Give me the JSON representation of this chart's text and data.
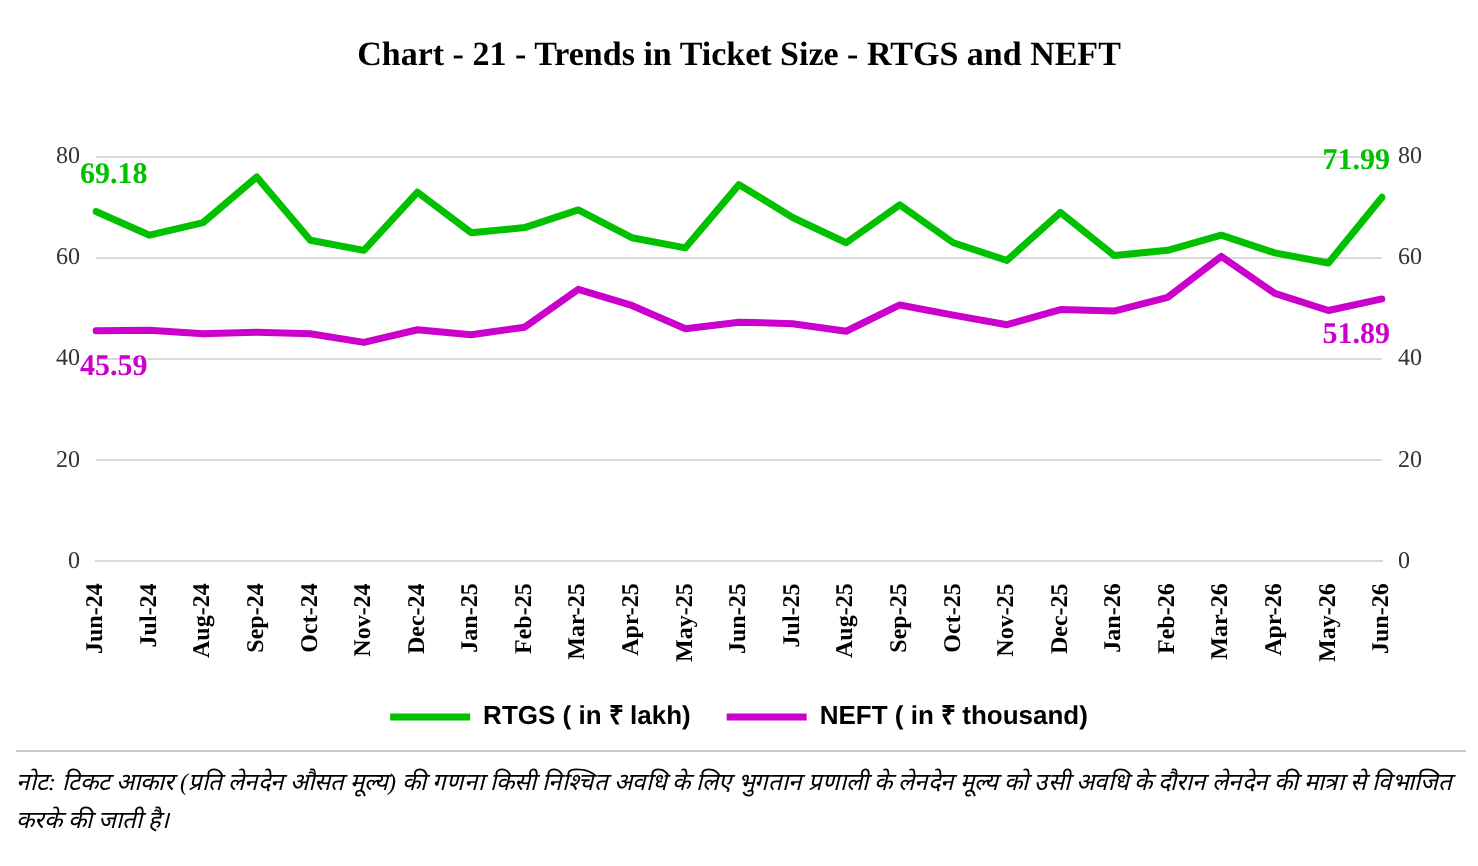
{
  "chart_data": {
    "type": "line",
    "title": "Chart - 21 - Trends in Ticket Size - RTGS and NEFT",
    "categories": [
      "Jun-24",
      "Jul-24",
      "Aug-24",
      "Sep-24",
      "Oct-24",
      "Nov-24",
      "Dec-24",
      "Jan-25",
      "Feb-25",
      "Mar-25",
      "Apr-25",
      "May-25",
      "Jun-25",
      "Jul-25",
      "Aug-25",
      "Sep-25",
      "Oct-25",
      "Nov-25",
      "Dec-25",
      "Jan-26",
      "Feb-26",
      "Mar-26",
      "Apr-26",
      "May-26",
      "Jun-26"
    ],
    "series": [
      {
        "name": "RTGS ( in ₹ lakh)",
        "color": "#00c000",
        "values": [
          69.18,
          64.5,
          67,
          76,
          63.5,
          61.5,
          73,
          65,
          66,
          69.5,
          64,
          62,
          74.5,
          68,
          63,
          70.5,
          63,
          59.5,
          69,
          60.5,
          61.5,
          64.5,
          61,
          59,
          71.99
        ]
      },
      {
        "name": "NEFT ( in ₹ thousand)",
        "color": "#cc00cc",
        "values": [
          45.59,
          45.7,
          45,
          45.3,
          45,
          43.3,
          45.8,
          44.8,
          46.3,
          53.8,
          50.6,
          46,
          47.3,
          47,
          45.5,
          50.7,
          48.7,
          46.8,
          49.8,
          49.5,
          52.2,
          60.3,
          53,
          49.6,
          51.89
        ]
      }
    ],
    "ylim": [
      0,
      80
    ],
    "yticks": [
      0,
      20,
      40,
      60,
      80
    ],
    "y2lim": [
      0,
      80
    ],
    "y2ticks": [
      0,
      20,
      40,
      60,
      80
    ],
    "grid": "y",
    "legend": "bottom",
    "marker": "none",
    "line_style": "solid",
    "annotations": [
      {
        "text": "69.18",
        "x": "Jun-24",
        "y": 69.18
      },
      {
        "text": "45.59",
        "x": "Jun-24",
        "y": 45.59
      },
      {
        "text": "71.99",
        "x": "Jun-26",
        "y": 71.99
      },
      {
        "text": "51.89",
        "x": "Jun-26",
        "y": 51.89
      },
      "नोट: टिकट आकार (प्रति लेनदेन औसत मूल्य) की गणना किसी निश्चित अवधि के लिए भुगतान प्रणाली के लेनदेन मूल्य को उसी अवधि के दौरान लेनदेन की मात्रा से विभाजित करके की जाती है।"
    ]
  }
}
